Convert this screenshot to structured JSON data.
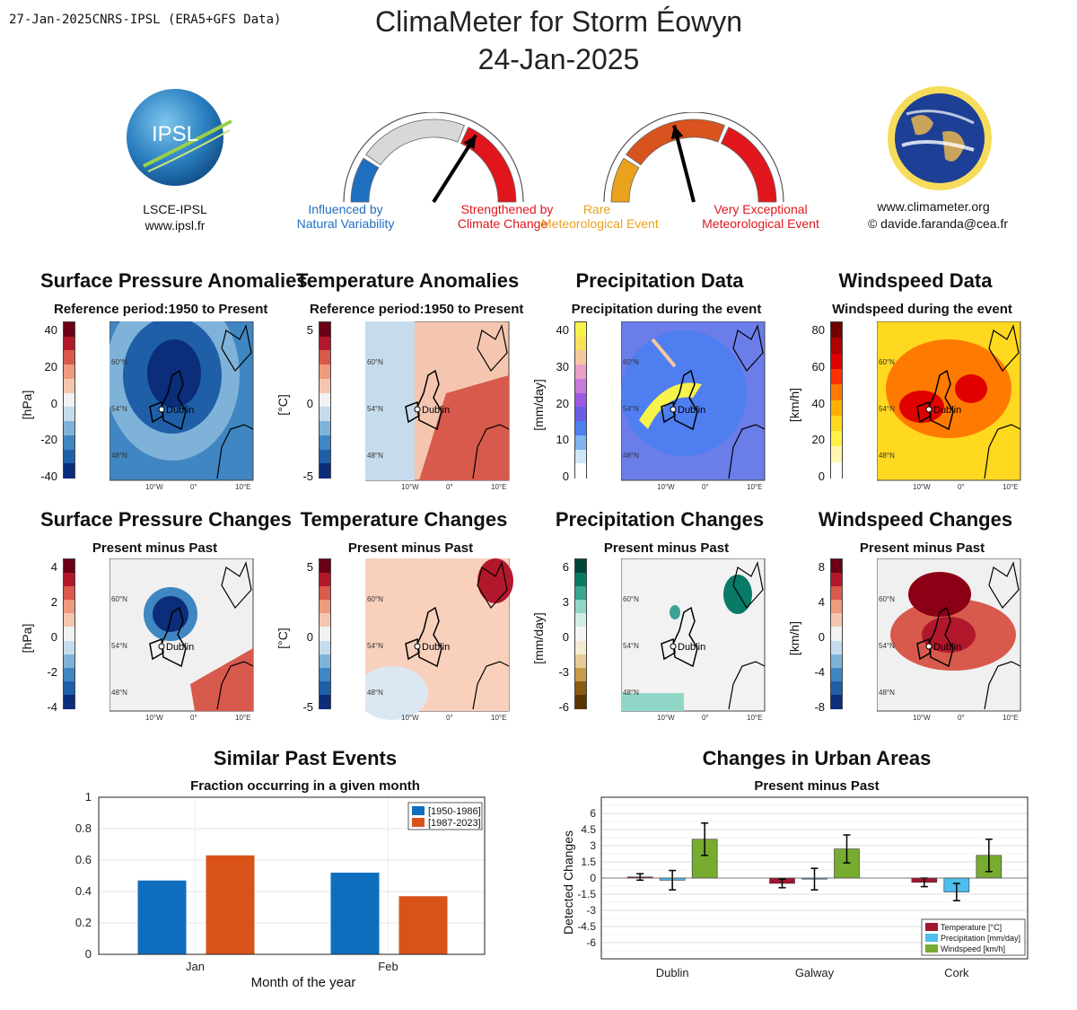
{
  "header": {
    "stamp": "27-Jan-2025CNRS-IPSL (ERA5+GFS Data)",
    "title_line1": "ClimaMeter for Storm Éowyn",
    "title_line2": "24-Jan-2025"
  },
  "logos": {
    "ipsl_text": "IPSL",
    "ipsl_name": "LSCE-IPSL",
    "ipsl_url": "www.ipsl.fr",
    "site_url": "www.climameter.org",
    "contact": "© davide.faranda@cea.fr"
  },
  "gauges": {
    "attribution": {
      "left_label_1": "Influenced by",
      "left_label_2": "Natural Variability",
      "right_label_1": "Strengthened by",
      "right_label_2": "Climate Change",
      "needle_fraction": 0.68,
      "colors": [
        "#1f6fc0",
        "#d8d8d8",
        "#e0161c"
      ]
    },
    "rarity": {
      "left_label_1": "Rare",
      "left_label_2": "Meteorological Event",
      "right_label_1": "Very Exceptional",
      "right_label_2": "Meteorological Event",
      "needle_fraction": 0.42,
      "colors": [
        "#eaa11c",
        "#d9531e",
        "#e0161c"
      ]
    }
  },
  "panels": {
    "row1": [
      {
        "title": "Surface Pressure Anomalies",
        "subtitle": "Reference period:1950 to Present",
        "unit": "[hPa]",
        "ticks": [
          "40",
          "20",
          "0",
          "-20",
          "-40"
        ]
      },
      {
        "title": "Temperature Anomalies",
        "subtitle": "Reference period:1950 to Present",
        "unit": "[°C]",
        "ticks": [
          "5",
          "0",
          "-5"
        ]
      },
      {
        "title": "Precipitation Data",
        "subtitle": "Precipitation during the event",
        "unit": "[mm/day]",
        "ticks": [
          "40",
          "30",
          "20",
          "10",
          "0"
        ]
      },
      {
        "title": "Windspeed Data",
        "subtitle": "Windspeed during the event",
        "unit": "[km/h]",
        "ticks": [
          "80",
          "60",
          "40",
          "20",
          "0"
        ]
      }
    ],
    "row2": [
      {
        "title": "Surface Pressure Changes",
        "subtitle": "Present minus Past",
        "unit": "[hPa]",
        "ticks": [
          "4",
          "2",
          "0",
          "-2",
          "-4"
        ]
      },
      {
        "title": "Temperature Changes",
        "subtitle": "Present minus Past",
        "unit": "[°C]",
        "ticks": [
          "5",
          "0",
          "-5"
        ]
      },
      {
        "title": "Precipitation Changes",
        "subtitle": "Present minus Past",
        "unit": "[mm/day]",
        "ticks": [
          "6",
          "3",
          "0",
          "-3",
          "-6"
        ]
      },
      {
        "title": "Windspeed Changes",
        "subtitle": "Present minus Past",
        "unit": "[km/h]",
        "ticks": [
          "8",
          "4",
          "0",
          "-4",
          "-8"
        ]
      }
    ],
    "map_labels": {
      "lat": [
        "60°N",
        "54°N",
        "48°N"
      ],
      "lon": [
        "10°W",
        "0°",
        "10°E"
      ],
      "city": "Dublin"
    }
  },
  "chart_data": [
    {
      "type": "bar",
      "title": "Similar Past Events",
      "subtitle": "Fraction occurring in a given month",
      "xlabel": "Month of the year",
      "ylabel": "",
      "categories": [
        "Jan",
        "Feb"
      ],
      "series": [
        {
          "name": "[1950-1986]",
          "values": [
            0.47,
            0.52
          ],
          "color": "#0e6ebd"
        },
        {
          "name": "[1987-2023]",
          "values": [
            0.63,
            0.37
          ],
          "color": "#d95319"
        }
      ],
      "ylim": [
        0,
        1
      ],
      "yticks": [
        "0",
        "0.2",
        "0.4",
        "0.6",
        "0.8",
        "1"
      ],
      "legend": "top-right",
      "grid": true
    },
    {
      "type": "bar",
      "title": "Changes in Urban Areas",
      "subtitle": "Present minus Past",
      "xlabel": "",
      "ylabel": "Detected Changes",
      "categories": [
        "Dublin",
        "Galway",
        "Cork"
      ],
      "series": [
        {
          "name": "Temperature [°C]",
          "values": [
            0.1,
            -0.5,
            -0.4
          ],
          "errors": [
            0.3,
            0.4,
            0.4
          ],
          "color": "#a2142f"
        },
        {
          "name": "Precipitation [mm/day]",
          "values": [
            -0.2,
            -0.1,
            -1.3
          ],
          "errors": [
            0.9,
            1.0,
            0.8
          ],
          "color": "#4dbeee"
        },
        {
          "name": "Windspeed [km/h]",
          "values": [
            3.6,
            2.7,
            2.1
          ],
          "errors": [
            1.5,
            1.3,
            1.5
          ],
          "color": "#77ac30"
        }
      ],
      "ylim": [
        -7.5,
        7.5
      ],
      "yticks": [
        "6",
        "4.5",
        "3",
        "1.5",
        "0",
        "-1.5",
        "-3",
        "-4.5",
        "-6"
      ],
      "legend": "bottom-right",
      "grid": true
    }
  ]
}
